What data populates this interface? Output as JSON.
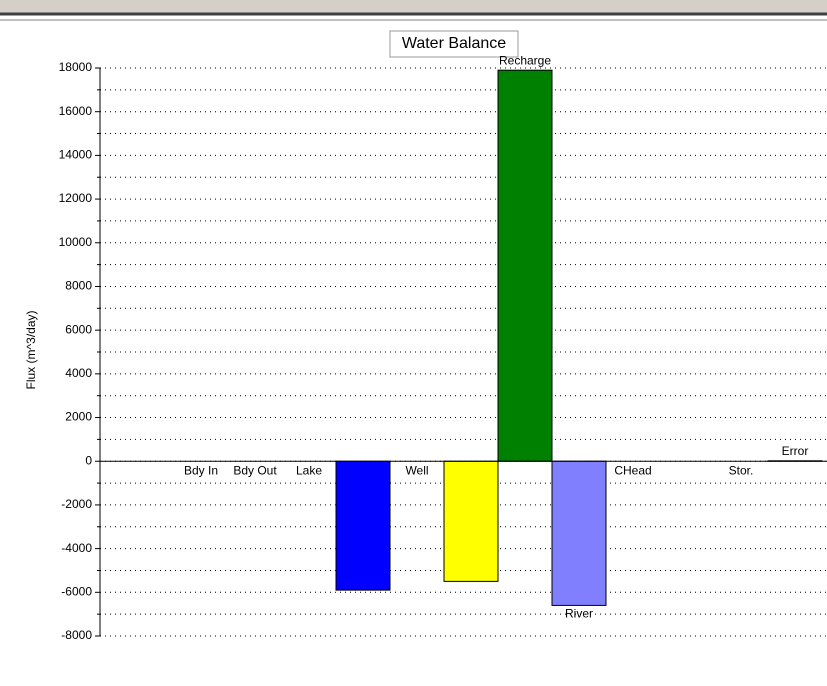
{
  "chart_data": {
    "type": "bar",
    "title": "Water Balance",
    "y_label": "Flux (m^3/day)",
    "categories": [
      "Bdy In",
      "Bdy Out",
      "Lake",
      null,
      "Well",
      null,
      "Recharge",
      "River",
      "CHead",
      null,
      "Stor.",
      "Error"
    ],
    "values": [
      0,
      0,
      0,
      -5900,
      0,
      -5500,
      17900,
      -6600,
      0,
      null,
      0,
      20
    ],
    "colors": [
      "#0000ff",
      "#0000ff",
      "#0000ff",
      "#0000ff",
      "#0000ff",
      "#ffff00",
      "#008000",
      "#8080ff",
      "#0000ff",
      "#0000ff",
      "#0000ff",
      "#0000ff"
    ],
    "ylim": [
      -8000,
      18000
    ],
    "yticks": [
      -8000,
      -6000,
      -4000,
      -2000,
      0,
      2000,
      4000,
      6000,
      8000,
      10000,
      12000,
      14000,
      16000,
      18000
    ],
    "grid": true
  }
}
